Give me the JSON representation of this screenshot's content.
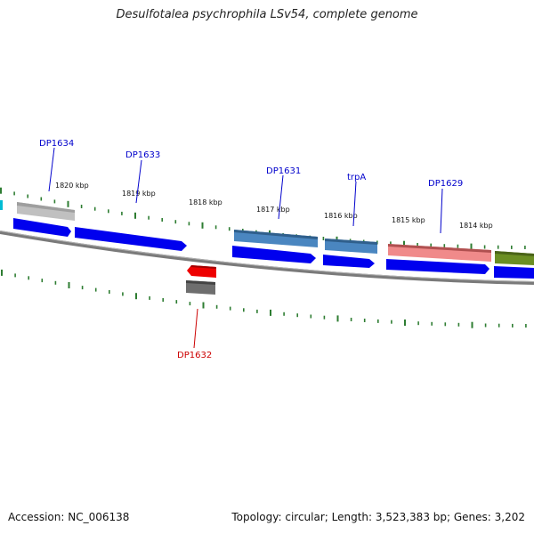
{
  "title": "Desulfotalea psychrophila LSv54, complete genome",
  "footer": {
    "accession": "Accession: NC_006138",
    "summary": "Topology: circular; Length: 3,523,383 bp; Genes: 3,202"
  },
  "colors": {
    "backbone": "#808080",
    "tick": "#2e7d32",
    "cds": "#0000ee",
    "label_blue": "#0000cc",
    "label_red": "#cc0000"
  },
  "scale_labels": [
    "1820 kbp",
    "1819 kbp",
    "1818 kbp",
    "1817 kbp",
    "1816 kbp",
    "1815 kbp",
    "1814 kbp"
  ],
  "gene_labels": [
    {
      "text": "DP1634",
      "color": "blue"
    },
    {
      "text": "DP1633",
      "color": "blue"
    },
    {
      "text": "DP1631",
      "color": "blue"
    },
    {
      "text": "trpA",
      "color": "blue"
    },
    {
      "text": "DP1629",
      "color": "blue"
    },
    {
      "text": "DP1632",
      "color": "red"
    }
  ]
}
